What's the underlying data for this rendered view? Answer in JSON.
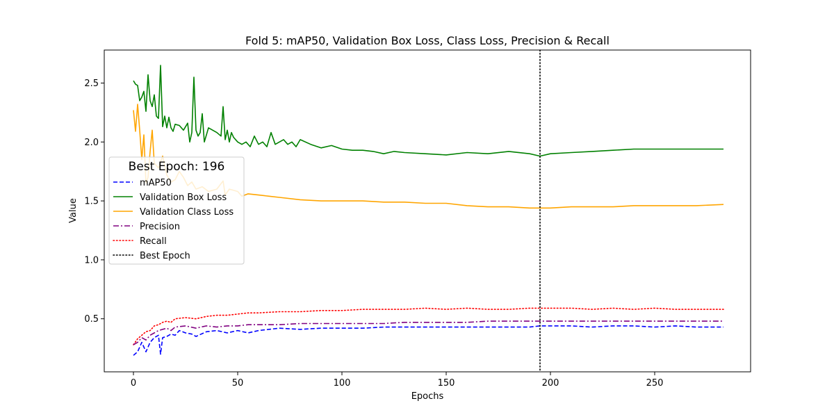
{
  "chart_data": {
    "type": "line",
    "title": "Fold 5: mAP50, Validation Box Loss, Class Loss, Precision & Recall",
    "xlabel": "Epochs",
    "ylabel": "Value",
    "xlim": [
      -14,
      296
    ],
    "ylim": [
      0.05,
      2.78
    ],
    "xticks": [
      0,
      50,
      100,
      150,
      200,
      250
    ],
    "yticks": [
      0.5,
      1.0,
      1.5,
      2.0,
      2.5
    ],
    "xtick_labels": [
      "0",
      "50",
      "100",
      "150",
      "200",
      "250"
    ],
    "ytick_labels": [
      "0.5",
      "1.0",
      "1.5",
      "2.0",
      "2.5"
    ],
    "grid": false,
    "legend": {
      "title": "Best Epoch: 196",
      "position": "center-left",
      "entries": [
        "mAP50",
        "Validation Box Loss",
        "Validation Class Loss",
        "Precision",
        "Recall",
        "Best Epoch"
      ]
    },
    "best_epoch_x": 195,
    "series": [
      {
        "name": "mAP50",
        "color": "#0000ff",
        "style": "dashed",
        "x": [
          0,
          2,
          4,
          6,
          8,
          10,
          12,
          13,
          14,
          16,
          18,
          20,
          22,
          25,
          28,
          30,
          35,
          40,
          45,
          50,
          55,
          60,
          65,
          70,
          80,
          90,
          100,
          110,
          120,
          130,
          140,
          150,
          160,
          170,
          180,
          190,
          195,
          200,
          210,
          220,
          230,
          240,
          250,
          260,
          270,
          283
        ],
        "y": [
          0.19,
          0.22,
          0.3,
          0.22,
          0.3,
          0.34,
          0.36,
          0.2,
          0.34,
          0.35,
          0.37,
          0.36,
          0.4,
          0.38,
          0.37,
          0.35,
          0.39,
          0.4,
          0.38,
          0.4,
          0.38,
          0.4,
          0.41,
          0.42,
          0.41,
          0.42,
          0.42,
          0.42,
          0.43,
          0.43,
          0.43,
          0.43,
          0.43,
          0.43,
          0.43,
          0.43,
          0.44,
          0.44,
          0.44,
          0.43,
          0.44,
          0.44,
          0.43,
          0.44,
          0.43,
          0.43
        ]
      },
      {
        "name": "Validation Box Loss",
        "color": "#008000",
        "style": "solid",
        "x": [
          0,
          1,
          2,
          3,
          4,
          5,
          6,
          7,
          8,
          9,
          10,
          11,
          12,
          13,
          14,
          15,
          16,
          17,
          18,
          19,
          20,
          22,
          24,
          26,
          27,
          28,
          29,
          30,
          31,
          32,
          33,
          34,
          36,
          38,
          40,
          42,
          43,
          44,
          45,
          46,
          47,
          48,
          50,
          52,
          54,
          56,
          58,
          60,
          62,
          64,
          66,
          68,
          70,
          72,
          74,
          76,
          78,
          80,
          85,
          90,
          95,
          100,
          105,
          110,
          115,
          120,
          125,
          130,
          140,
          150,
          160,
          170,
          180,
          190,
          195,
          200,
          210,
          220,
          230,
          240,
          250,
          260,
          270,
          283
        ],
        "y": [
          2.52,
          2.49,
          2.48,
          2.35,
          2.38,
          2.43,
          2.26,
          2.57,
          2.35,
          2.3,
          2.4,
          2.22,
          2.2,
          2.65,
          2.13,
          2.22,
          2.12,
          2.21,
          2.12,
          2.09,
          2.15,
          2.14,
          2.1,
          2.16,
          2.0,
          2.08,
          2.55,
          2.1,
          2.05,
          2.08,
          2.24,
          2.0,
          2.12,
          2.1,
          2.08,
          2.05,
          2.3,
          2.02,
          2.1,
          2.0,
          2.08,
          2.04,
          2.0,
          1.98,
          2.0,
          1.96,
          2.05,
          1.98,
          2.0,
          1.96,
          2.08,
          1.98,
          2.0,
          2.02,
          1.98,
          2.0,
          1.96,
          2.02,
          1.98,
          1.95,
          1.97,
          1.94,
          1.93,
          1.93,
          1.92,
          1.9,
          1.92,
          1.91,
          1.9,
          1.89,
          1.91,
          1.9,
          1.92,
          1.9,
          1.88,
          1.9,
          1.91,
          1.92,
          1.93,
          1.94,
          1.94,
          1.94,
          1.94,
          1.94
        ]
      },
      {
        "name": "Validation Class Loss",
        "color": "#ffa500",
        "style": "solid",
        "x": [
          0,
          1,
          2,
          3,
          4,
          5,
          6,
          7,
          8,
          9,
          10,
          12,
          14,
          16,
          18,
          20,
          22,
          24,
          26,
          28,
          30,
          33,
          36,
          40,
          43,
          44,
          46,
          50,
          52,
          55,
          60,
          65,
          70,
          80,
          90,
          100,
          110,
          120,
          130,
          140,
          150,
          160,
          170,
          180,
          190,
          195,
          200,
          210,
          220,
          230,
          240,
          250,
          260,
          270,
          283
        ],
        "y": [
          2.27,
          2.09,
          2.32,
          2.1,
          1.85,
          2.06,
          1.65,
          1.7,
          1.92,
          2.1,
          1.82,
          1.78,
          1.88,
          1.72,
          1.66,
          1.68,
          1.75,
          1.7,
          1.63,
          1.66,
          1.6,
          1.62,
          1.58,
          1.6,
          1.67,
          1.55,
          1.6,
          1.58,
          1.54,
          1.56,
          1.55,
          1.54,
          1.53,
          1.51,
          1.5,
          1.5,
          1.5,
          1.49,
          1.49,
          1.48,
          1.48,
          1.46,
          1.45,
          1.45,
          1.44,
          1.44,
          1.44,
          1.45,
          1.45,
          1.45,
          1.46,
          1.46,
          1.46,
          1.46,
          1.47
        ]
      },
      {
        "name": "Precision",
        "color": "#800080",
        "style": "dashdot",
        "x": [
          0,
          2,
          4,
          6,
          8,
          10,
          12,
          14,
          16,
          18,
          20,
          25,
          30,
          35,
          40,
          45,
          50,
          55,
          60,
          70,
          80,
          90,
          100,
          110,
          120,
          130,
          140,
          150,
          160,
          170,
          180,
          190,
          195,
          200,
          210,
          220,
          230,
          240,
          250,
          260,
          270,
          283
        ],
        "y": [
          0.28,
          0.3,
          0.34,
          0.32,
          0.36,
          0.38,
          0.4,
          0.41,
          0.42,
          0.4,
          0.43,
          0.44,
          0.42,
          0.44,
          0.43,
          0.44,
          0.44,
          0.45,
          0.45,
          0.45,
          0.46,
          0.46,
          0.46,
          0.46,
          0.46,
          0.47,
          0.47,
          0.47,
          0.47,
          0.48,
          0.48,
          0.48,
          0.48,
          0.48,
          0.48,
          0.48,
          0.48,
          0.48,
          0.48,
          0.48,
          0.48,
          0.48
        ]
      },
      {
        "name": "Recall",
        "color": "#ff0000",
        "style": "dotted",
        "x": [
          0,
          2,
          4,
          6,
          8,
          10,
          12,
          14,
          16,
          18,
          20,
          25,
          30,
          35,
          40,
          45,
          50,
          55,
          60,
          70,
          80,
          90,
          100,
          110,
          120,
          130,
          140,
          150,
          160,
          170,
          180,
          190,
          195,
          200,
          210,
          220,
          230,
          240,
          250,
          260,
          270,
          283
        ],
        "y": [
          0.28,
          0.33,
          0.36,
          0.39,
          0.4,
          0.44,
          0.45,
          0.47,
          0.48,
          0.47,
          0.5,
          0.51,
          0.5,
          0.52,
          0.53,
          0.53,
          0.54,
          0.55,
          0.55,
          0.56,
          0.56,
          0.57,
          0.57,
          0.58,
          0.58,
          0.58,
          0.59,
          0.58,
          0.59,
          0.58,
          0.58,
          0.59,
          0.59,
          0.59,
          0.59,
          0.58,
          0.59,
          0.58,
          0.59,
          0.58,
          0.58,
          0.58
        ]
      }
    ]
  }
}
